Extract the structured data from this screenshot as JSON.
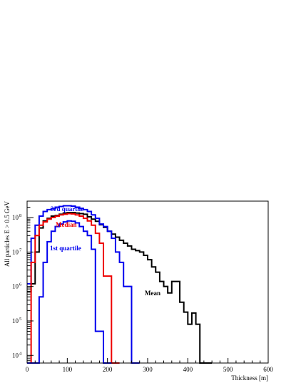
{
  "chart_data": {
    "type": "line",
    "xlabel": "Thickness [m]",
    "ylabel": "All particles  E > 0.5 GeV",
    "xlim": [
      0,
      600
    ],
    "ylim": [
      6000,
      300000000
    ],
    "y_scale": "log",
    "x_ticks": [
      0,
      100,
      200,
      300,
      400,
      500,
      600
    ],
    "y_ticks": [
      {
        "value": 10000,
        "base": "10",
        "exp": "4"
      },
      {
        "value": 100000,
        "base": "10",
        "exp": "5"
      },
      {
        "value": 1000000,
        "base": "10",
        "exp": "6"
      },
      {
        "value": 10000000,
        "base": "10",
        "exp": "7"
      },
      {
        "value": 100000000,
        "base": "10",
        "exp": "8"
      }
    ],
    "grid": false,
    "legend": "none",
    "bin_width": 10,
    "series": [
      {
        "name": "Mean",
        "color": "#000000",
        "x": [
          0,
          10,
          20,
          30,
          40,
          50,
          60,
          70,
          80,
          90,
          100,
          110,
          120,
          130,
          140,
          150,
          160,
          170,
          180,
          190,
          200,
          210,
          220,
          230,
          240,
          250,
          260,
          270,
          280,
          290,
          300,
          310,
          320,
          330,
          340,
          350,
          360,
          370,
          380,
          390,
          400,
          410,
          420,
          430,
          440,
          450
        ],
        "values": [
          700000,
          1200000,
          10000000,
          50000000,
          80000000,
          95000000,
          110000000,
          115000000,
          125000000,
          135000000,
          140000000,
          140000000,
          135000000,
          130000000,
          125000000,
          105000000,
          90000000,
          78000000,
          62000000,
          52000000,
          40000000,
          33000000,
          27000000,
          22000000,
          18000000,
          15000000,
          12000000,
          11000000,
          10000000,
          8000000,
          6000000,
          3700000,
          2600000,
          1400000,
          1000000,
          650000,
          1400000,
          1400000,
          350000,
          180000,
          80000,
          170000,
          80000,
          6000,
          0,
          0
        ]
      },
      {
        "name": "3rd quartile",
        "color": "#0000ee",
        "x": [
          0,
          10,
          20,
          30,
          40,
          50,
          60,
          70,
          80,
          90,
          100,
          110,
          120,
          130,
          140,
          150,
          160,
          170,
          180,
          190,
          200,
          210,
          220,
          230,
          240,
          250,
          260,
          270
        ],
        "values": [
          1200000,
          25000000,
          60000000,
          110000000,
          150000000,
          170000000,
          180000000,
          200000000,
          210000000,
          220000000,
          220000000,
          215000000,
          200000000,
          185000000,
          170000000,
          150000000,
          120000000,
          95000000,
          65000000,
          55000000,
          40000000,
          25000000,
          10000000,
          5000000,
          1000000,
          1000000,
          0,
          0
        ]
      },
      {
        "name": "Median",
        "color": "#ee0000",
        "x": [
          0,
          10,
          20,
          30,
          40,
          50,
          60,
          70,
          80,
          90,
          100,
          110,
          120,
          130,
          140,
          150,
          160,
          170,
          180,
          190,
          200,
          210,
          220
        ],
        "values": [
          0,
          5000000,
          30000000,
          60000000,
          75000000,
          90000000,
          100000000,
          110000000,
          120000000,
          125000000,
          130000000,
          128000000,
          120000000,
          110000000,
          95000000,
          80000000,
          60000000,
          35000000,
          18000000,
          2000000,
          2000000,
          0,
          0
        ]
      },
      {
        "name": "1st quartile",
        "color": "#0000ee",
        "x": [
          0,
          10,
          20,
          30,
          40,
          50,
          60,
          70,
          80,
          90,
          100,
          110,
          120,
          130,
          140,
          150,
          160,
          170,
          180,
          190,
          200
        ],
        "values": [
          0,
          0,
          0,
          500000,
          5000000,
          20000000,
          40000000,
          55000000,
          65000000,
          75000000,
          80000000,
          78000000,
          70000000,
          55000000,
          40000000,
          30000000,
          12000000,
          50000,
          50000,
          0,
          0
        ]
      }
    ],
    "annotations": [
      {
        "text": "3rd quartile",
        "color": "#0000ee"
      },
      {
        "text": "Median",
        "color": "#ee0000"
      },
      {
        "text": "1st quartile",
        "color": "#0000ee"
      },
      {
        "text": "Mean",
        "color": "#000000"
      }
    ]
  }
}
